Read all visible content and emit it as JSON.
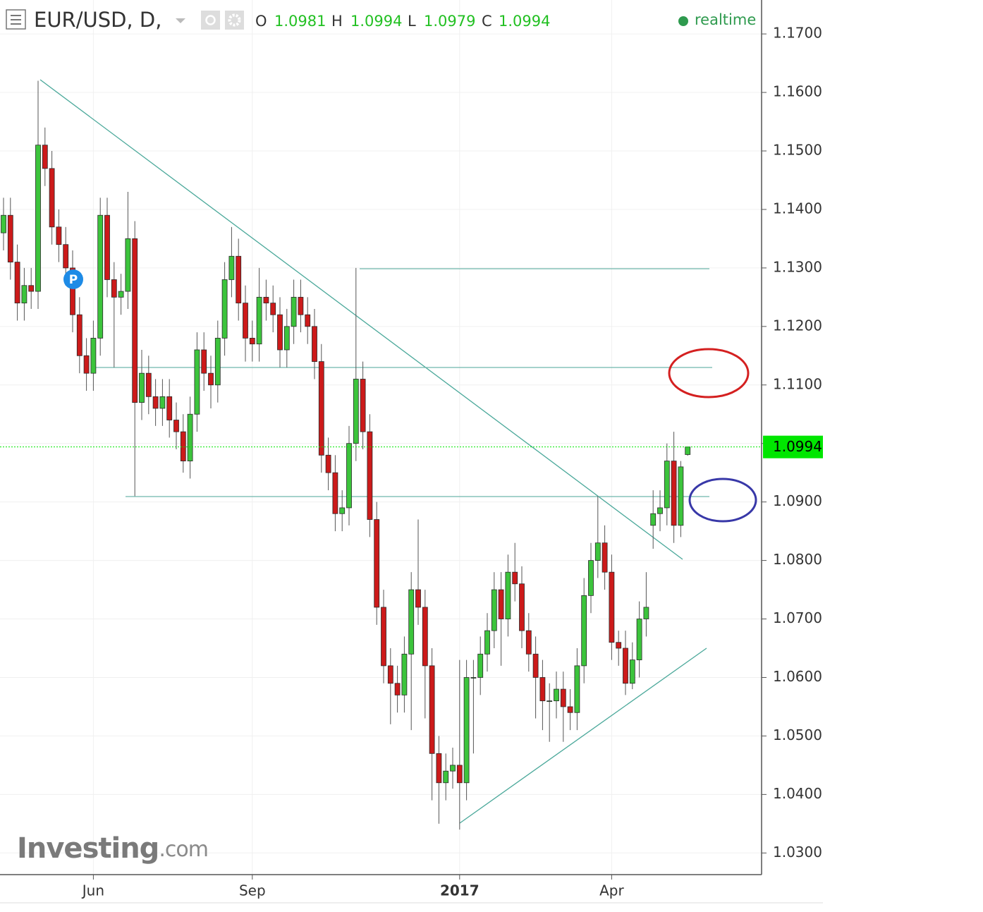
{
  "chart_data": {
    "type": "candlestick",
    "title": "EUR/USD, D,",
    "legend": [
      {
        "label": "O",
        "value": 1.0981
      },
      {
        "label": "H",
        "value": 1.0994
      },
      {
        "label": "L",
        "value": 1.0979
      },
      {
        "label": "C",
        "value": 1.0994
      }
    ],
    "status": "realtime",
    "last_price": 1.0994,
    "marker": "P",
    "logo": {
      "brand": "Investing",
      "suffix": ".com"
    },
    "categories": [
      null,
      null,
      null,
      null,
      null,
      null,
      null,
      null,
      null,
      null,
      null,
      null,
      null,
      "Jun",
      null,
      null,
      null,
      null,
      null,
      null,
      null,
      null,
      null,
      null,
      null,
      null,
      null,
      null,
      null,
      null,
      null,
      null,
      null,
      null,
      null,
      null,
      "Sep",
      null,
      null,
      null,
      null,
      null,
      null,
      null,
      null,
      null,
      null,
      null,
      null,
      null,
      null,
      null,
      null,
      null,
      null,
      null,
      null,
      null,
      null,
      null,
      null,
      null,
      null,
      null,
      null,
      null,
      "2017",
      null,
      null,
      null,
      null,
      null,
      null,
      null,
      null,
      null,
      null,
      null,
      null,
      null,
      null,
      null,
      null,
      null,
      null,
      null,
      null,
      null,
      "Apr",
      null,
      null,
      null,
      null,
      null,
      null,
      null,
      null,
      null,
      null,
      null
    ],
    "open": [
      1.136,
      1.139,
      1.131,
      1.124,
      1.127,
      1.126,
      1.151,
      1.147,
      1.137,
      1.134,
      1.13,
      1.122,
      1.115,
      1.112,
      1.118,
      1.139,
      1.128,
      1.125,
      1.126,
      1.135,
      1.107,
      1.112,
      1.108,
      1.106,
      1.108,
      1.104,
      1.102,
      1.097,
      1.105,
      1.116,
      1.112,
      1.11,
      1.118,
      1.128,
      1.132,
      1.124,
      1.118,
      1.117,
      1.125,
      1.124,
      1.122,
      1.116,
      1.12,
      1.125,
      1.122,
      1.12,
      1.114,
      1.098,
      1.095,
      1.088,
      1.089,
      1.1,
      1.111,
      1.102,
      1.087,
      1.072,
      1.062,
      1.059,
      1.057,
      1.064,
      1.075,
      1.072,
      1.062,
      1.047,
      1.042,
      1.044,
      1.045,
      1.042,
      1.06,
      1.06,
      1.064,
      1.068,
      1.075,
      1.07,
      1.078,
      1.076,
      1.068,
      1.064,
      1.06,
      1.056,
      1.056,
      1.058,
      1.055,
      1.054,
      1.062,
      1.074,
      1.08,
      1.083,
      1.078,
      1.066,
      1.065,
      1.059,
      1.063,
      1.07,
      1.086,
      1.088,
      1.089,
      1.097,
      1.086,
      1.0981
    ],
    "high": [
      1.142,
      1.142,
      1.134,
      1.13,
      1.13,
      1.162,
      1.154,
      1.15,
      1.14,
      1.137,
      1.133,
      1.125,
      1.118,
      1.121,
      1.142,
      1.142,
      1.131,
      1.129,
      1.143,
      1.138,
      1.116,
      1.115,
      1.111,
      1.111,
      1.111,
      1.107,
      1.105,
      1.108,
      1.119,
      1.119,
      1.115,
      1.121,
      1.131,
      1.137,
      1.135,
      1.127,
      1.121,
      1.13,
      1.128,
      1.127,
      1.125,
      1.123,
      1.128,
      1.128,
      1.125,
      1.123,
      1.117,
      1.101,
      1.098,
      1.092,
      1.103,
      1.13,
      1.114,
      1.105,
      1.09,
      1.075,
      1.065,
      1.062,
      1.067,
      1.078,
      1.087,
      1.075,
      1.065,
      1.05,
      1.047,
      1.048,
      1.063,
      1.063,
      1.063,
      1.067,
      1.071,
      1.078,
      1.078,
      1.081,
      1.083,
      1.079,
      1.071,
      1.067,
      1.063,
      1.059,
      1.061,
      1.061,
      1.058,
      1.065,
      1.077,
      1.083,
      1.091,
      1.086,
      1.081,
      1.068,
      1.068,
      1.066,
      1.073,
      1.078,
      1.092,
      1.092,
      1.1,
      1.102,
      1.097,
      1.0994
    ],
    "low": [
      1.133,
      1.128,
      1.121,
      1.121,
      1.123,
      1.123,
      1.144,
      1.134,
      1.131,
      1.127,
      1.119,
      1.112,
      1.109,
      1.109,
      1.115,
      1.125,
      1.113,
      1.122,
      1.123,
      1.091,
      1.104,
      1.105,
      1.103,
      1.103,
      1.101,
      1.099,
      1.095,
      1.094,
      1.102,
      1.109,
      1.106,
      1.107,
      1.115,
      1.125,
      1.121,
      1.114,
      1.114,
      1.114,
      1.121,
      1.119,
      1.113,
      1.113,
      1.117,
      1.119,
      1.117,
      1.111,
      1.095,
      1.092,
      1.085,
      1.085,
      1.086,
      1.097,
      1.099,
      1.084,
      1.069,
      1.059,
      1.052,
      1.054,
      1.054,
      1.051,
      1.069,
      1.053,
      1.039,
      1.035,
      1.039,
      1.041,
      1.034,
      1.039,
      1.047,
      1.057,
      1.061,
      1.065,
      1.062,
      1.067,
      1.073,
      1.065,
      1.061,
      1.053,
      1.051,
      1.049,
      1.053,
      1.049,
      1.051,
      1.051,
      1.059,
      1.071,
      1.077,
      1.075,
      1.063,
      1.062,
      1.057,
      1.058,
      1.06,
      1.067,
      1.082,
      1.085,
      1.086,
      1.083,
      1.084,
      1.0979
    ],
    "close": [
      1.139,
      1.131,
      1.124,
      1.127,
      1.126,
      1.151,
      1.147,
      1.137,
      1.134,
      1.13,
      1.122,
      1.115,
      1.112,
      1.118,
      1.139,
      1.128,
      1.125,
      1.126,
      1.135,
      1.107,
      1.112,
      1.108,
      1.106,
      1.108,
      1.104,
      1.102,
      1.097,
      1.105,
      1.116,
      1.112,
      1.11,
      1.118,
      1.128,
      1.132,
      1.124,
      1.118,
      1.117,
      1.125,
      1.124,
      1.122,
      1.116,
      1.12,
      1.125,
      1.122,
      1.12,
      1.114,
      1.098,
      1.095,
      1.088,
      1.089,
      1.1,
      1.111,
      1.102,
      1.087,
      1.072,
      1.062,
      1.059,
      1.057,
      1.064,
      1.075,
      1.072,
      1.062,
      1.047,
      1.042,
      1.044,
      1.045,
      1.042,
      1.06,
      1.06,
      1.064,
      1.068,
      1.075,
      1.07,
      1.078,
      1.076,
      1.068,
      1.064,
      1.06,
      1.056,
      1.056,
      1.058,
      1.055,
      1.054,
      1.062,
      1.074,
      1.08,
      1.083,
      1.078,
      1.066,
      1.065,
      1.059,
      1.063,
      1.07,
      1.072,
      1.088,
      1.089,
      1.097,
      1.086,
      1.096,
      1.0994
    ],
    "up_color": "#3cc43c",
    "down_color": "#cc1a1a",
    "last_color": "#00e600",
    "ylim": [
      1.0263,
      1.1758
    ],
    "yticks": [
      {
        "value": 1.03,
        "label": "1.0300"
      },
      {
        "value": 1.04,
        "label": "1.0400"
      },
      {
        "value": 1.05,
        "label": "1.0500"
      },
      {
        "value": 1.06,
        "label": "1.0600"
      },
      {
        "value": 1.07,
        "label": "1.0700"
      },
      {
        "value": 1.08,
        "label": "1.0800"
      },
      {
        "value": 1.09,
        "label": "1.0900"
      },
      {
        "value": 1.1,
        "label": "1.1000"
      },
      {
        "value": 1.11,
        "label": "1.1100"
      },
      {
        "value": 1.12,
        "label": "1.1200"
      },
      {
        "value": 1.13,
        "label": "1.1300"
      },
      {
        "value": 1.14,
        "label": "1.1400"
      },
      {
        "value": 1.15,
        "label": "1.1500"
      },
      {
        "value": 1.16,
        "label": "1.1600"
      },
      {
        "value": 1.17,
        "label": "1.1700"
      }
    ],
    "grid": true
  }
}
